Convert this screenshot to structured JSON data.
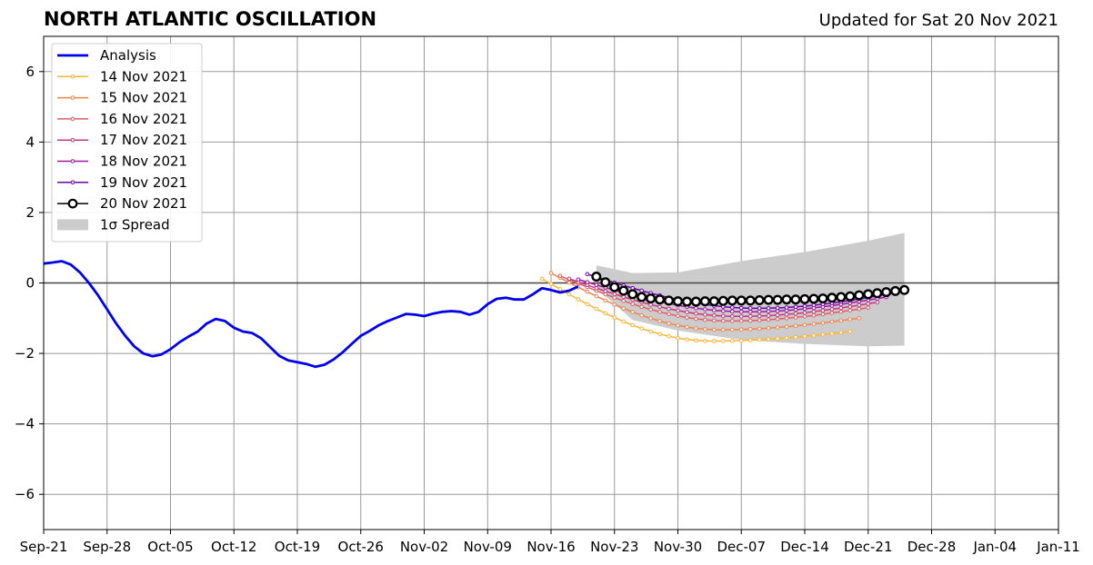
{
  "title": "NORTH ATLANTIC OSCILLATION",
  "subtitle": "Updated for Sat 20 Nov 2021",
  "chart_data": {
    "type": "line",
    "title": "NORTH ATLANTIC OSCILLATION",
    "subtitle": "Updated for Sat 20 Nov 2021",
    "xlabel": "",
    "ylabel": "",
    "xlim": [
      "2021-09-21",
      "2022-01-11"
    ],
    "ylim": [
      -7,
      7
    ],
    "grid": true,
    "legend_position": "top-left",
    "x_ticks": [
      "Sep-21",
      "Sep-28",
      "Oct-05",
      "Oct-12",
      "Oct-19",
      "Oct-26",
      "Nov-02",
      "Nov-09",
      "Nov-16",
      "Nov-23",
      "Nov-30",
      "Dec-07",
      "Dec-14",
      "Dec-21",
      "Dec-28",
      "Jan-04",
      "Jan-11"
    ],
    "y_ticks": [
      "6",
      "4",
      "2",
      "0",
      "−2",
      "−4",
      "−6"
    ],
    "y_tick_values": [
      6,
      4,
      2,
      0,
      -2,
      -4,
      -6
    ],
    "analysis": {
      "name": "Analysis",
      "color": "#0000ee",
      "start_date": "2021-09-21",
      "values": [
        0.55,
        0.58,
        0.62,
        0.52,
        0.3,
        0.0,
        -0.35,
        -0.75,
        -1.15,
        -1.5,
        -1.8,
        -2.0,
        -2.08,
        -2.03,
        -1.88,
        -1.68,
        -1.52,
        -1.38,
        -1.15,
        -1.02,
        -1.08,
        -1.27,
        -1.38,
        -1.42,
        -1.57,
        -1.82,
        -2.07,
        -2.2,
        -2.25,
        -2.3,
        -2.38,
        -2.32,
        -2.17,
        -1.97,
        -1.73,
        -1.5,
        -1.36,
        -1.2,
        -1.08,
        -0.98,
        -0.88,
        -0.9,
        -0.94,
        -0.87,
        -0.82,
        -0.8,
        -0.82,
        -0.9,
        -0.82,
        -0.6,
        -0.45,
        -0.42,
        -0.47,
        -0.47,
        -0.32,
        -0.15,
        -0.2,
        -0.27,
        -0.22,
        -0.1
      ]
    },
    "forecasts": [
      {
        "name": "14 Nov 2021",
        "color": "#fbb534",
        "start_date": "2021-11-15",
        "start_value": 0.12,
        "end_date": "2021-12-19",
        "min_value": -1.65,
        "end_value": -1.38
      },
      {
        "name": "15 Nov 2021",
        "color": "#f1844b",
        "start_date": "2021-11-16",
        "start_value": 0.28,
        "end_date": "2021-12-20",
        "min_value": -1.33,
        "end_value": -1.0
      },
      {
        "name": "16 Nov 2021",
        "color": "#dd5f65",
        "start_date": "2021-11-17",
        "start_value": 0.2,
        "end_date": "2021-12-21",
        "min_value": -1.08,
        "end_value": -0.7
      },
      {
        "name": "17 Nov 2021",
        "color": "#c0397e",
        "start_date": "2021-11-18",
        "start_value": 0.12,
        "end_date": "2021-12-22",
        "min_value": -0.95,
        "end_value": -0.55
      },
      {
        "name": "18 Nov 2021",
        "color": "#9f189e",
        "start_date": "2021-11-19",
        "start_value": 0.1,
        "end_date": "2021-12-23",
        "min_value": -0.82,
        "end_value": -0.4
      },
      {
        "name": "19 Nov 2021",
        "color": "#6a00a8",
        "start_date": "2021-11-20",
        "start_value": 0.25,
        "end_date": "2021-12-24",
        "min_value": -0.72,
        "end_value": -0.28
      }
    ],
    "current_forecast": {
      "name": "20 Nov 2021",
      "color": "#000000",
      "marker": "open-circle",
      "start_date": "2021-11-21",
      "values": [
        0.18,
        0.02,
        -0.12,
        -0.22,
        -0.32,
        -0.4,
        -0.44,
        -0.47,
        -0.5,
        -0.52,
        -0.53,
        -0.53,
        -0.52,
        -0.52,
        -0.51,
        -0.5,
        -0.5,
        -0.5,
        -0.49,
        -0.48,
        -0.48,
        -0.47,
        -0.47,
        -0.46,
        -0.45,
        -0.44,
        -0.42,
        -0.4,
        -0.38,
        -0.35,
        -0.32,
        -0.29,
        -0.26,
        -0.23,
        -0.2
      ]
    },
    "spread": {
      "name": "1σ Spread",
      "color": "#cccccc",
      "x_dates": [
        "2021-11-21",
        "2021-11-25",
        "2021-11-30",
        "2021-12-07",
        "2021-12-14",
        "2021-12-21",
        "2021-12-25"
      ],
      "upper": [
        0.5,
        0.28,
        0.3,
        0.62,
        0.88,
        1.2,
        1.42
      ],
      "lower": [
        -0.15,
        -1.05,
        -1.35,
        -1.62,
        -1.73,
        -1.8,
        -1.78
      ]
    }
  }
}
